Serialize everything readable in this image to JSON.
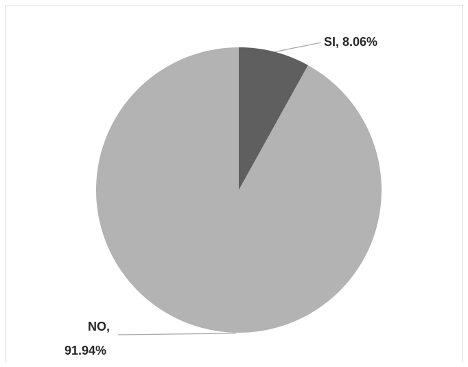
{
  "chart_data": {
    "type": "pie",
    "title": "",
    "slices": [
      {
        "label": "SI",
        "value": 8.06,
        "display": "SI, 8.06%",
        "color": "#5f5f5f"
      },
      {
        "label": "NO",
        "value": 91.94,
        "display_line1": "NO,",
        "display_line2": "91.94%",
        "color": "#b3b3b3"
      }
    ],
    "start_angle": "12 o'clock",
    "direction": "clockwise",
    "legend": "none",
    "leader_line_color": "#a6a6a6"
  }
}
